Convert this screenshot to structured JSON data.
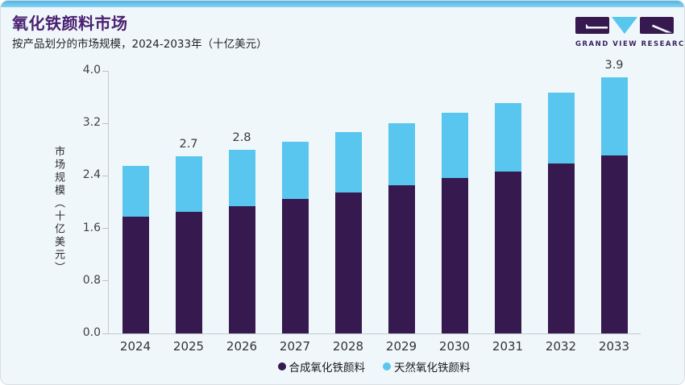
{
  "header": {
    "title": "氧化铁颜料市场",
    "subtitle": "按产品划分的市场规模，2024-2033年（十亿美元）"
  },
  "logo": {
    "text": "GRAND VIEW RESEARCH"
  },
  "colors": {
    "accent_strip": "#5fc0ea",
    "title_purple": "#4a2171",
    "synthetic_bar": "#36194f",
    "natural_bar": "#58c6ef",
    "card_background": "#f0f7fa",
    "axis_gray": "#c2cbd1"
  },
  "chart_data": {
    "type": "bar",
    "stacked": true,
    "title": "氧化铁颜料市场",
    "subtitle": "按产品划分的市场规模，2024-2033年（十亿美元）",
    "ylabel": "市场规模（十亿美元）",
    "xlabel": "",
    "ylim": [
      0,
      4.0
    ],
    "ytick_labels": [
      "0.0",
      "0.8",
      "1.6",
      "2.4",
      "3.2",
      "4.0"
    ],
    "grid": false,
    "legend_position": "bottom",
    "categories": [
      "2024",
      "2025",
      "2026",
      "2027",
      "2028",
      "2029",
      "2030",
      "2031",
      "2032",
      "2033"
    ],
    "series": [
      {
        "name": "合成氧化铁颜料",
        "color": "#36194f",
        "values": [
          1.78,
          1.85,
          1.94,
          2.05,
          2.15,
          2.26,
          2.37,
          2.47,
          2.59,
          2.71
        ]
      },
      {
        "name": "天然氧化铁颜料",
        "color": "#58c6ef",
        "values": [
          0.77,
          0.85,
          0.86,
          0.87,
          0.92,
          0.94,
          0.99,
          1.04,
          1.08,
          1.19
        ]
      }
    ],
    "totals": [
      2.55,
      2.7,
      2.8,
      2.92,
      3.07,
      3.2,
      3.36,
      3.51,
      3.67,
      3.9
    ],
    "bar_total_labels": [
      "",
      "2.7",
      "2.8",
      "",
      "",
      "",
      "",
      "",
      "",
      "3.9"
    ]
  }
}
